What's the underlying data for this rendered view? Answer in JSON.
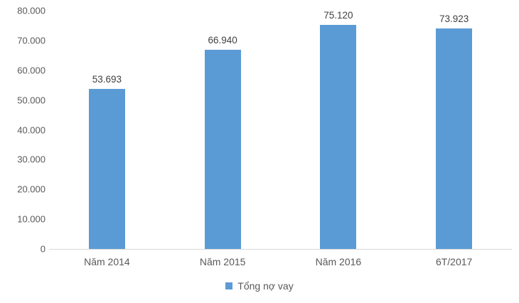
{
  "chart_data": {
    "type": "bar",
    "title": "",
    "categories": [
      "Năm 2014",
      "Năm 2015",
      "Năm 2016",
      "6T/2017"
    ],
    "values": [
      53693,
      66940,
      75120,
      73923
    ],
    "value_labels": [
      "53.693",
      "66.940",
      "75.120",
      "73.923"
    ],
    "series": [
      {
        "name": "Tổng nợ vay",
        "values": [
          53693,
          66940,
          75120,
          73923
        ]
      }
    ],
    "legend": "Tổng nợ vay",
    "legend_position": "bottom",
    "xlabel": "",
    "ylabel": "",
    "ylim": [
      0,
      80000
    ],
    "y_tick_values": [
      0,
      10000,
      20000,
      30000,
      40000,
      50000,
      60000,
      70000,
      80000
    ],
    "y_tick_labels": [
      "0",
      "10.000",
      "20.000",
      "30.000",
      "40.000",
      "50.000",
      "60.000",
      "70.000",
      "80.000"
    ],
    "grid": false,
    "data_labels_shown": true,
    "colors": {
      "bar": "#5B9BD5",
      "axis_line": "#D9D9D9",
      "tick_text": "#595959",
      "data_label_text": "#404040"
    }
  }
}
